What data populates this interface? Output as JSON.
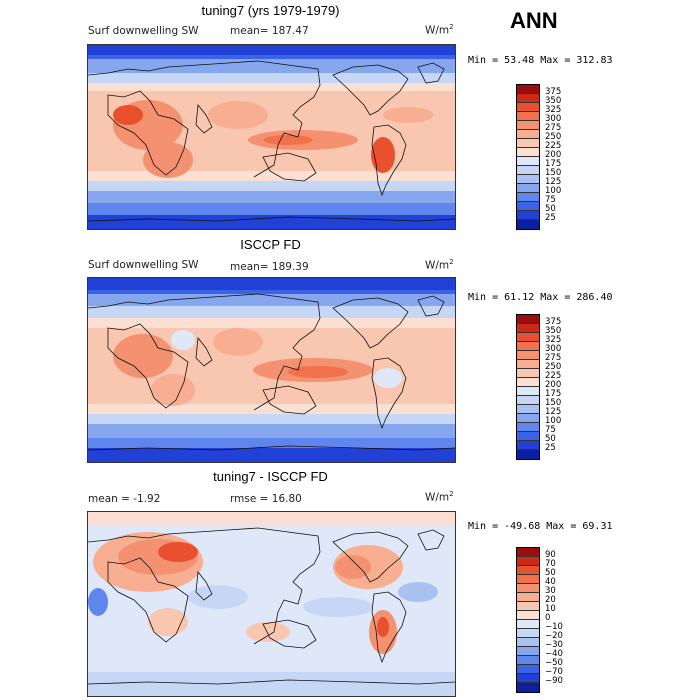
{
  "season": "ANN",
  "panels": [
    {
      "id": "model",
      "title": "tuning7 (yrs 1979-1979)",
      "variable": "Surf downwelling SW",
      "stat": "mean=  187.47",
      "stat2": "",
      "units_base": "W/m",
      "units_exp": "2",
      "minmax": "Min =  53.48 Max = 312.83",
      "colorbar": {
        "levels": [
          "375",
          "350",
          "325",
          "300",
          "275",
          "250",
          "225",
          "200",
          "175",
          "150",
          "125",
          "100",
          "75",
          "50",
          "25"
        ],
        "colors": [
          "#9c0d0d",
          "#cd2a16",
          "#e8502e",
          "#f0714b",
          "#f49170",
          "#f8ae91",
          "#f9c6b0",
          "#fbdfd2",
          "#dfe8f9",
          "#c6d7f6",
          "#a9c2f2",
          "#86a7ee",
          "#5f86ec",
          "#3b63e8",
          "#2140d6",
          "#0b1fa3"
        ]
      }
    },
    {
      "id": "obs",
      "title": "ISCCP FD",
      "variable": "Surf downwelling SW",
      "stat": "mean=  189.39",
      "stat2": "",
      "units_base": "W/m",
      "units_exp": "2",
      "minmax": "Min =  61.12 Max = 286.40",
      "colorbar": {
        "levels": [
          "375",
          "350",
          "325",
          "300",
          "275",
          "250",
          "225",
          "200",
          "175",
          "150",
          "125",
          "100",
          "75",
          "50",
          "25"
        ],
        "colors": [
          "#9c0d0d",
          "#cd2a16",
          "#e8502e",
          "#f0714b",
          "#f49170",
          "#f8ae91",
          "#f9c6b0",
          "#fbdfd2",
          "#dfe8f9",
          "#c6d7f6",
          "#a9c2f2",
          "#86a7ee",
          "#5f86ec",
          "#3b63e8",
          "#2140d6",
          "#0b1fa3"
        ]
      }
    },
    {
      "id": "diff",
      "title": "tuning7 - ISCCP FD",
      "variable": "",
      "stat": "mean =   -1.92",
      "stat2": "rmse =   16.80",
      "units_base": "W/m",
      "units_exp": "2",
      "minmax": "Min = -49.68 Max =  69.31",
      "colorbar": {
        "levels": [
          "90",
          "70",
          "50",
          "40",
          "30",
          "20",
          "10",
          "0",
          "−10",
          "−20",
          "−30",
          "−40",
          "−50",
          "−70",
          "−90"
        ],
        "colors": [
          "#9c0d0d",
          "#cd2a16",
          "#e8502e",
          "#f0714b",
          "#f49170",
          "#f8ae91",
          "#f9c6b0",
          "#fbdfd2",
          "#dfe8f9",
          "#c6d7f6",
          "#a9c2f2",
          "#86a7ee",
          "#5f86ec",
          "#3b63e8",
          "#2140d6",
          "#0b1fa3"
        ]
      }
    }
  ]
}
